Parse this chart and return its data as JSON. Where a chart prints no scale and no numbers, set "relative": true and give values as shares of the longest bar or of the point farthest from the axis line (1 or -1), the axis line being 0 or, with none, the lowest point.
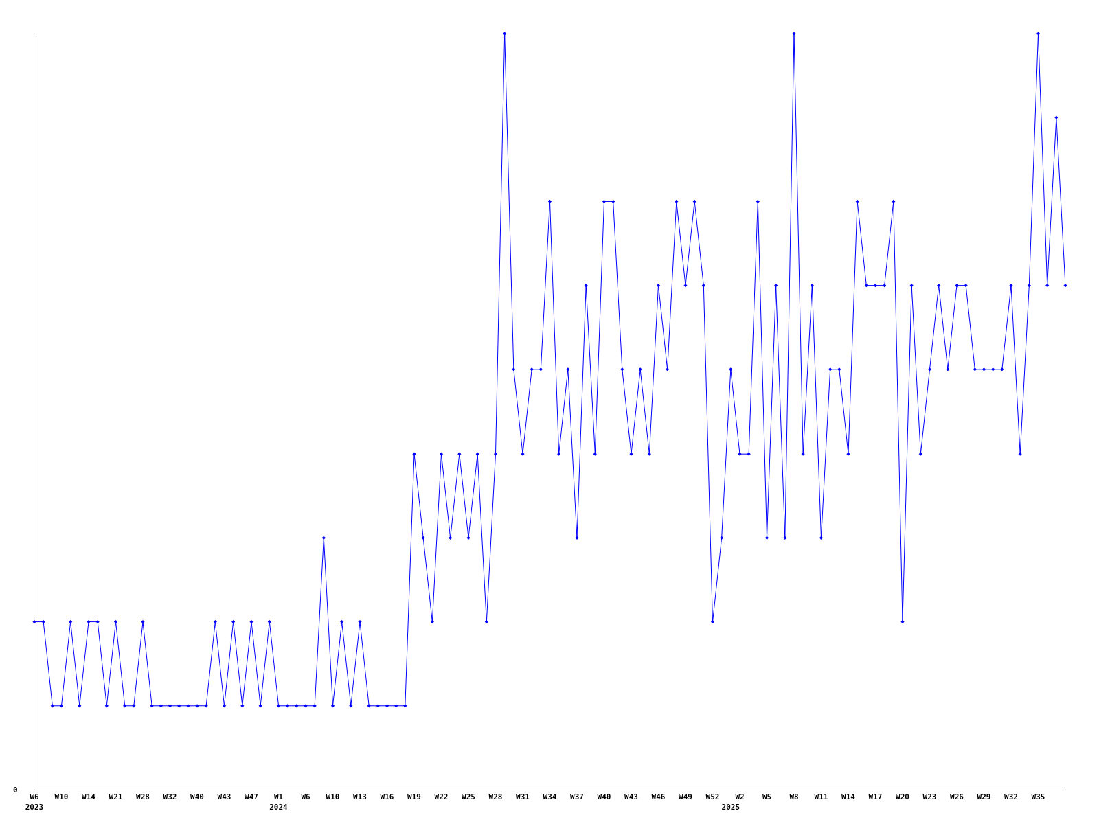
{
  "chart_data": {
    "type": "line",
    "relative": true,
    "marker": "diamond",
    "annotations": [
      "0"
    ],
    "categories": [
      "W6\n2023",
      null,
      null,
      "W10",
      null,
      null,
      "W14",
      null,
      null,
      "W21",
      null,
      null,
      "W28",
      null,
      null,
      "W32",
      null,
      null,
      "W40",
      null,
      null,
      "W43",
      null,
      null,
      "W47",
      null,
      null,
      "W1\n2024",
      null,
      null,
      "W6",
      null,
      null,
      "W10",
      null,
      null,
      "W13",
      null,
      null,
      "W16",
      null,
      null,
      "W19",
      null,
      null,
      "W22",
      null,
      null,
      "W25",
      null,
      null,
      "W28",
      null,
      null,
      "W31",
      null,
      null,
      "W34",
      null,
      null,
      "W37",
      null,
      null,
      "W40",
      null,
      null,
      "W43",
      null,
      null,
      "W46",
      null,
      null,
      "W49",
      null,
      null,
      "W52",
      null,
      "\n2025",
      "W2",
      null,
      null,
      "W5",
      null,
      null,
      "W8",
      null,
      null,
      "W11",
      null,
      null,
      "W14",
      null,
      null,
      "W17",
      null,
      null,
      "W20",
      null,
      null,
      "W23",
      null,
      null,
      "W26",
      null,
      null,
      "W29",
      null,
      null,
      "W32",
      null,
      null,
      "W35",
      null,
      null,
      null
    ],
    "series": [
      {
        "color": "#0000ff",
        "values": [
          0.222,
          0.222,
          0.111,
          0.111,
          0.222,
          0.111,
          0.222,
          0.222,
          0.111,
          0.222,
          0.111,
          0.111,
          0.222,
          0.111,
          0.111,
          0.111,
          0.111,
          0.111,
          0.111,
          0.111,
          0.222,
          0.111,
          0.222,
          0.111,
          0.222,
          0.111,
          0.222,
          0.111,
          0.111,
          0.111,
          0.111,
          0.111,
          0.333,
          0.111,
          0.222,
          0.111,
          0.222,
          0.111,
          0.111,
          0.111,
          0.111,
          0.111,
          0.444,
          0.333,
          0.222,
          0.444,
          0.333,
          0.444,
          0.333,
          0.444,
          0.222,
          0.444,
          1,
          0.556,
          0.444,
          0.556,
          0.556,
          0.778,
          0.444,
          0.556,
          0.333,
          0.667,
          0.444,
          0.778,
          0.778,
          0.556,
          0.444,
          0.556,
          0.444,
          0.667,
          0.556,
          0.778,
          0.667,
          0.778,
          0.667,
          0.222,
          0.333,
          0.556,
          0.444,
          0.444,
          0.778,
          0.333,
          0.667,
          0.333,
          1,
          0.444,
          0.667,
          0.333,
          0.556,
          0.556,
          0.444,
          0.778,
          0.667,
          0.667,
          0.667,
          0.778,
          0.222,
          0.667,
          0.444,
          0.556,
          0.667,
          0.556,
          0.667,
          0.667,
          0.556,
          0.556,
          0.556,
          0.556,
          0.667,
          0.444,
          0.667,
          1,
          0.667,
          0.889,
          0.667
        ]
      }
    ]
  }
}
